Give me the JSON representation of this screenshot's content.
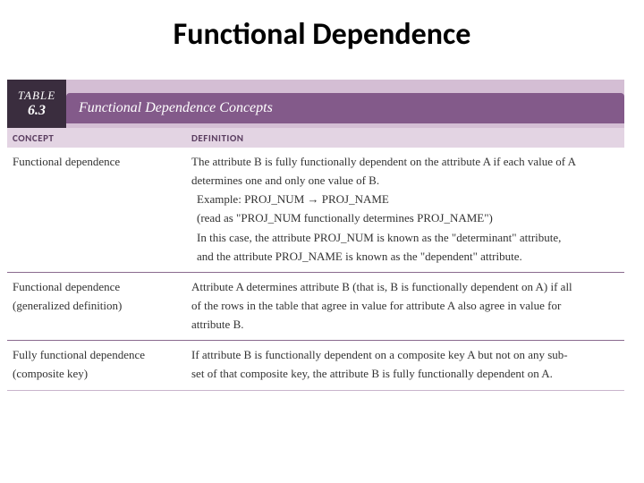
{
  "title": "Functional Dependence",
  "tableHeader": {
    "label": "TABLE",
    "number": "6.3",
    "title": "Functional Dependence Concepts",
    "numBoxBg": "#3a2d3e",
    "titleBarBg": "#835a8a",
    "stripBg": "#d4bed4"
  },
  "columns": {
    "concept": "CONCEPT",
    "definition": "DEFINITION",
    "headerBg": "#e3d4e3",
    "headerColor": "#5a3d60"
  },
  "rows": [
    {
      "concept_l1": "Functional dependence",
      "concept_l2": "",
      "def_l1": "The attribute B is fully functionally dependent on the attribute A if each value of A",
      "def_l2": "determines one and only one value of B.",
      "def_l3": "Example: PROJ_NUM → PROJ_NAME",
      "def_l4": "  (read as \"PROJ_NUM functionally determines PROJ_NAME\")",
      "def_l5": "  In this case, the attribute PROJ_NUM is known as the \"determinant\" attribute,",
      "def_l6": "  and the attribute PROJ_NAME is known as the \"dependent\" attribute."
    },
    {
      "concept_l1": "Functional dependence",
      "concept_l2": "(generalized definition)",
      "def_l1": "Attribute A determines attribute B (that is, B is functionally dependent on A) if all",
      "def_l2": "of the rows in the table that agree in value for attribute A also agree in value for",
      "def_l3": "attribute B.",
      "def_l4": "",
      "def_l5": "",
      "def_l6": ""
    },
    {
      "concept_l1": "Fully functional dependence",
      "concept_l2": "(composite key)",
      "def_l1": "If attribute B is functionally dependent on a composite key A but not on any sub-",
      "def_l2": "set of that composite key, the attribute B is fully functionally dependent on A.",
      "def_l3": "",
      "def_l4": "",
      "def_l5": "",
      "def_l6": ""
    }
  ],
  "styling": {
    "rowBorderColor": "#8a6a8f",
    "textColor": "#323232",
    "conceptColWidth": 200
  }
}
